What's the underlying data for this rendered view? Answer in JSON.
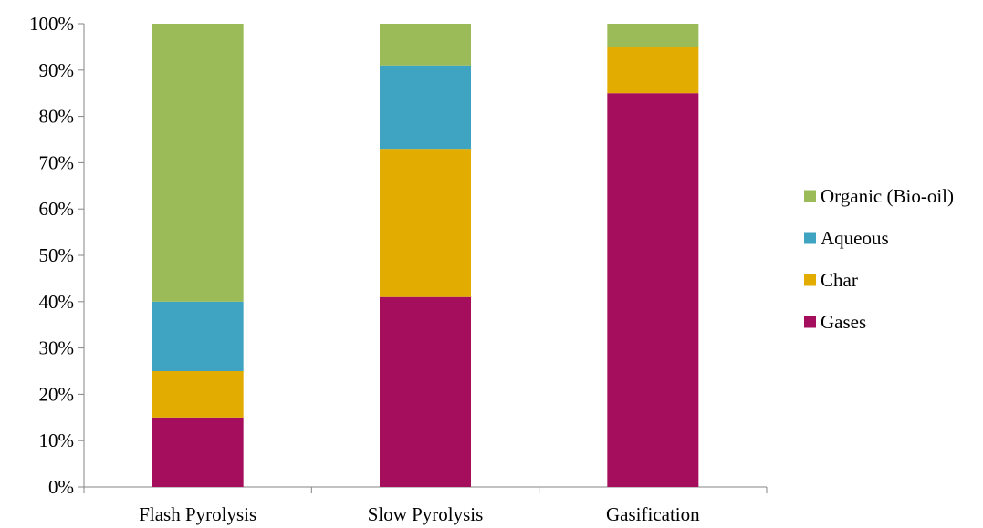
{
  "chart_data": {
    "type": "bar",
    "stacked": true,
    "percent_stacked": true,
    "title": "",
    "xlabel": "",
    "ylabel": "",
    "categories": [
      "Flash Pyrolysis",
      "Slow Pyrolysis",
      "Gasification"
    ],
    "y_ticks": [
      "0%",
      "10%",
      "20%",
      "30%",
      "40%",
      "50%",
      "60%",
      "70%",
      "80%",
      "90%",
      "100%"
    ],
    "ylim": [
      0,
      100
    ],
    "grid": false,
    "legend_position": "right",
    "legend_order": [
      "Organic (Bio-oil)",
      "Aqueous",
      "Char",
      "Gases"
    ],
    "series": [
      {
        "name": "Gases",
        "color": "#A50D5D",
        "values": [
          15,
          41,
          85
        ]
      },
      {
        "name": "Char",
        "color": "#E2AC00",
        "values": [
          10,
          32,
          10
        ]
      },
      {
        "name": "Aqueous",
        "color": "#3FA4C1",
        "values": [
          15,
          18,
          0
        ]
      },
      {
        "name": "Organic (Bio-oil)",
        "color": "#9BBB59",
        "values": [
          60,
          9,
          5
        ]
      }
    ]
  }
}
